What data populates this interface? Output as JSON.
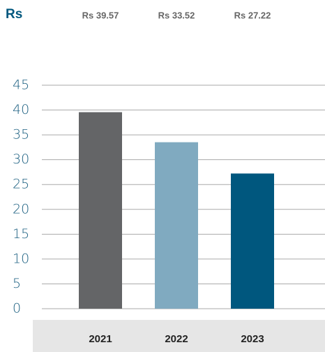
{
  "chart_data": {
    "type": "bar",
    "title": "Rs",
    "categories": [
      "2021",
      "2022",
      "2023"
    ],
    "values": [
      39.57,
      33.52,
      27.22
    ],
    "value_labels": [
      "Rs 39.57",
      "Rs 33.52",
      "Rs 27.22"
    ],
    "colors": [
      "#646567",
      "#80aac0",
      "#00577e"
    ],
    "ylim": [
      0,
      45
    ],
    "yticks": [
      0,
      5,
      10,
      15,
      20,
      25,
      30,
      35,
      40,
      45
    ],
    "grid": true
  }
}
